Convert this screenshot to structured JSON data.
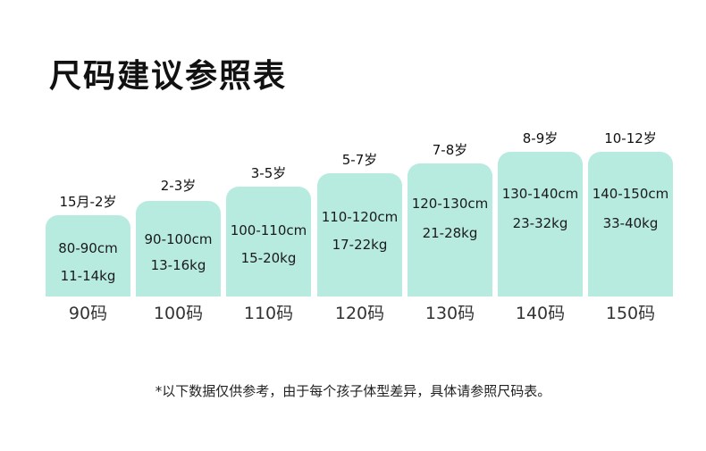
{
  "title": "尺码建议参照表",
  "columns": [
    {
      "age": "15月-2岁",
      "height": "80-90cm",
      "weight": "11-14kg",
      "size": "90码"
    },
    {
      "age": "2-3岁",
      "height": "90-100cm",
      "weight": "13-16kg",
      "size": "100码"
    },
    {
      "age": "3-5岁",
      "height": "100-110cm",
      "weight": "15-20kg",
      "size": "110码"
    },
    {
      "age": "5-7岁",
      "height": "110-120cm",
      "weight": "17-22kg",
      "size": "120码"
    },
    {
      "age": "7-8岁",
      "height": "120-130cm",
      "weight": "21-28kg",
      "size": "130码"
    },
    {
      "age": "8-9岁",
      "height": "130-140cm",
      "weight": "23-32kg",
      "size": "140码"
    },
    {
      "age": "10-12岁",
      "height": "140-150cm",
      "weight": "33-40kg",
      "size": "150码"
    }
  ],
  "footnote": "*以下数据仅供参考，由于每个孩子体型差异，具体请参照尺码表。",
  "colors": {
    "card": "#b7ebe0",
    "text": "#1a1a1a"
  }
}
